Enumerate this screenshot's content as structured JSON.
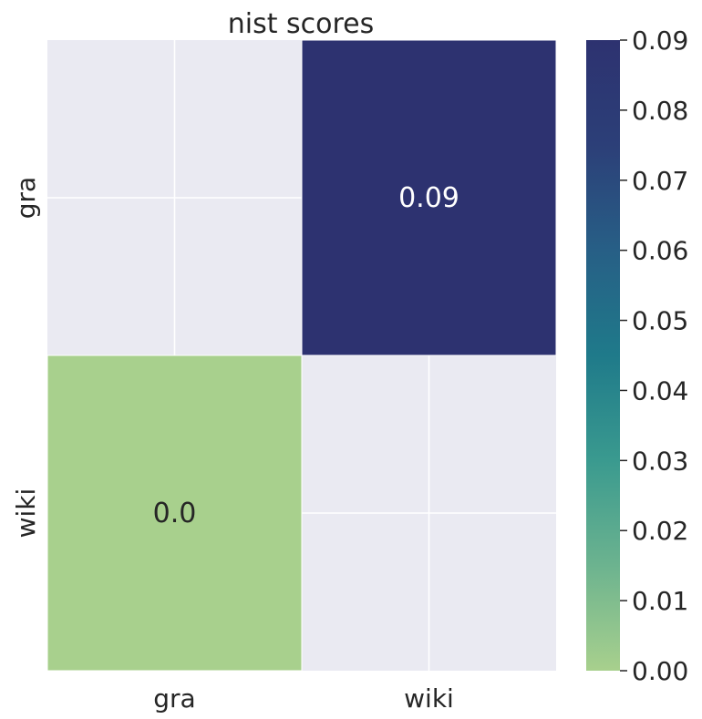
{
  "chart_data": {
    "type": "heatmap",
    "title": "nist scores",
    "xlabel": "",
    "ylabel": "",
    "x_categories": [
      "gra",
      "wiki"
    ],
    "y_categories": [
      "gra",
      "wiki"
    ],
    "cells": [
      {
        "row": 0,
        "col": 0,
        "value": null,
        "label": ""
      },
      {
        "row": 0,
        "col": 1,
        "value": 0.09,
        "label": "0.09"
      },
      {
        "row": 1,
        "col": 0,
        "value": 0.0,
        "label": "0.0"
      },
      {
        "row": 1,
        "col": 1,
        "value": null,
        "label": ""
      }
    ],
    "colorbar": {
      "min": 0.0,
      "max": 0.09,
      "ticks": [
        "0.00",
        "0.01",
        "0.02",
        "0.03",
        "0.04",
        "0.05",
        "0.06",
        "0.07",
        "0.08",
        "0.09"
      ],
      "colormap": [
        "#a8d08d",
        "#6cb38f",
        "#3a9a8f",
        "#1f7a8a",
        "#275f86",
        "#2c3f78",
        "#2d3270"
      ]
    },
    "colors": {
      "empty_cell_background": "#eaeaf2",
      "grid_line": "#ffffff",
      "light_text": "#ffffff",
      "dark_text": "#262626"
    },
    "grid": true
  }
}
